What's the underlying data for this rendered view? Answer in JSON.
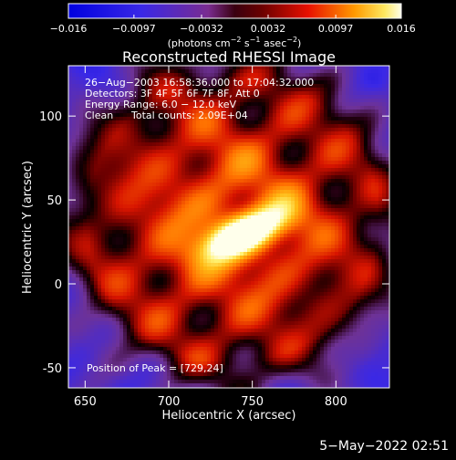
{
  "chart_data": {
    "type": "heatmap",
    "title": "Reconstructed RHESSI Image",
    "xlabel": "Heliocentric X (arcsec)",
    "ylabel": "Heliocentric Y (arcsec)",
    "xlim": [
      640,
      832
    ],
    "ylim": [
      -62,
      130
    ],
    "x_ticks": [
      "650",
      "700",
      "750",
      "800"
    ],
    "y_ticks": [
      "-50",
      "0",
      "50",
      "100"
    ],
    "x_tick_values": [
      650,
      700,
      750,
      800
    ],
    "y_tick_values": [
      -50,
      0,
      50,
      100
    ],
    "colorbar": {
      "range": [
        -0.016,
        0.016
      ],
      "tick_labels": [
        "−0.016",
        "−0.0097",
        "−0.0032",
        "0.0032",
        "0.0097",
        "0.016"
      ],
      "tick_values": [
        -0.016,
        -0.0097,
        -0.0032,
        0.0032,
        0.0097,
        0.016
      ],
      "unit_text": "(photons cm",
      "unit_sup1": "−2",
      "unit_mid": " s",
      "unit_sup2": "−1",
      "unit_end": " asec",
      "unit_sup3": "−2",
      "unit_close": ")"
    },
    "annotations": {
      "line1": "26−Aug−2003 16:58:36.000 to 17:04:32.000",
      "line2": "Detectors: 3F 4F 5F 6F 7F 8F, Att 0",
      "line3": "Energy Range: 6.0 − 12.0 keV",
      "line4_method": "Clean",
      "line4_counts": "Total counts: 2.09E+04",
      "peak": "Position of Peak = [729,24]"
    },
    "peak_position": [
      729,
      24
    ],
    "source": {
      "center": [
        745,
        30
      ],
      "angle_deg": 22,
      "extent": [
        30,
        8
      ],
      "peak_value": 0.016
    }
  },
  "timestamp": "5−May−2022 02:51"
}
